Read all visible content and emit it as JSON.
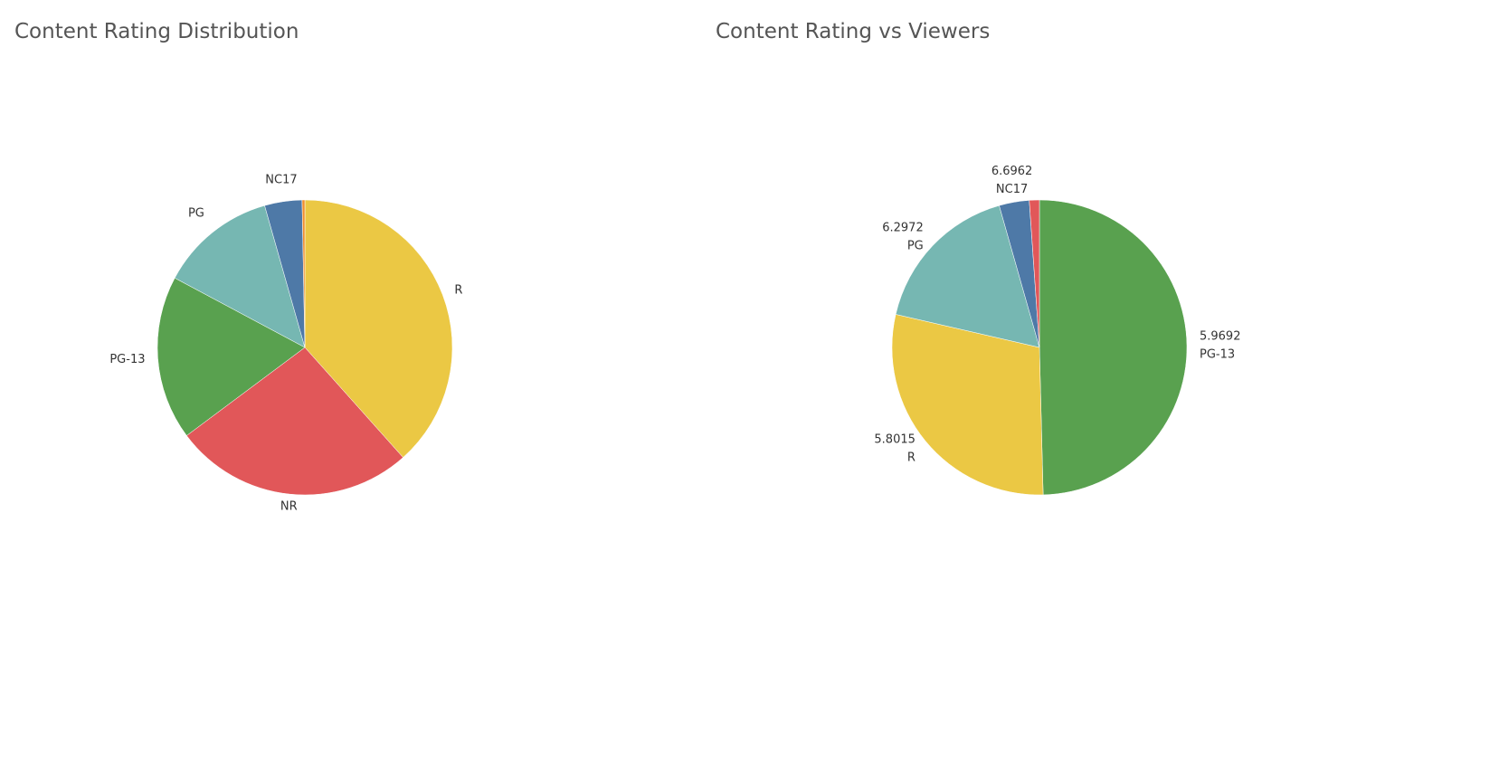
{
  "chart_data": [
    {
      "type": "pie",
      "title": "Content Rating Distribution",
      "categories": [
        "R",
        "NR",
        "PG-13",
        "PG",
        "NC17",
        null
      ],
      "values": [
        38.4,
        26.4,
        18.0,
        12.8,
        4.1,
        0.3
      ],
      "colors": [
        "#EBC844",
        "#E15759",
        "#59A14F",
        "#76B7B2",
        "#4E79A7",
        "#F28E2B"
      ]
    },
    {
      "type": "pie",
      "title": "Content Rating vs Viewers",
      "categories": [
        "PG-13",
        "R",
        "PG",
        "NC17",
        null
      ],
      "values": [
        49.6,
        29.0,
        17.0,
        3.3,
        1.1
      ],
      "ratings": [
        5.9692,
        5.8015,
        6.2972,
        6.6962,
        null
      ],
      "colors": [
        "#59A14F",
        "#EBC844",
        "#76B7B2",
        "#4E79A7",
        "#E15759"
      ]
    }
  ]
}
